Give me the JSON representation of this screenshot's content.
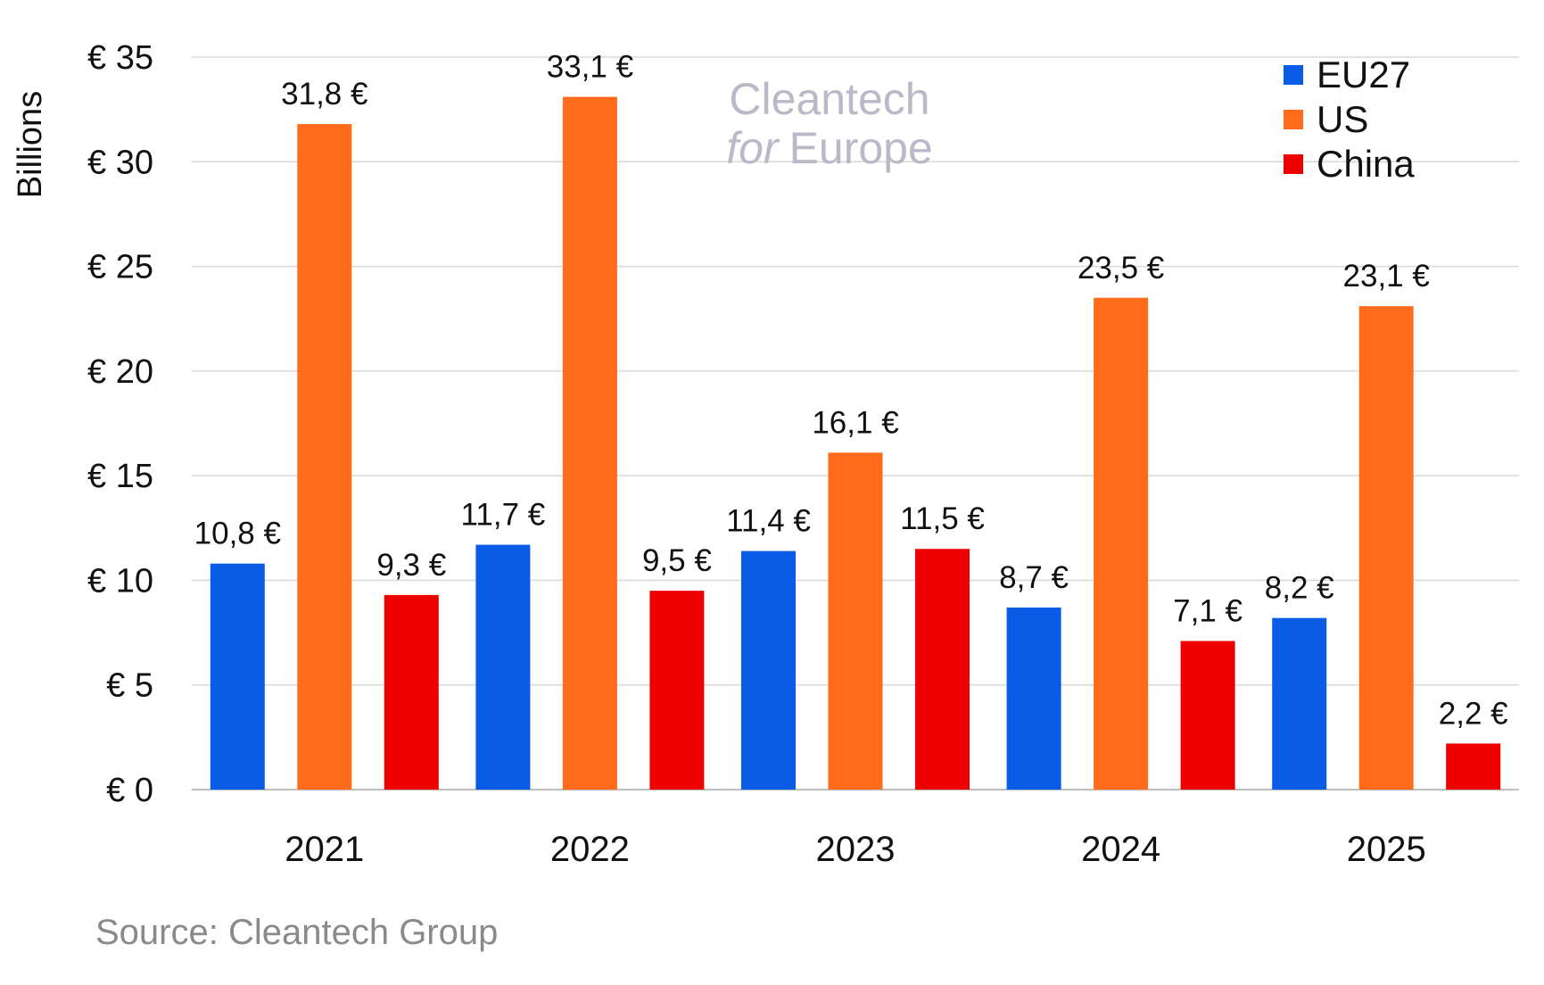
{
  "chart_data": {
    "type": "bar",
    "title": "",
    "categories": [
      "2021",
      "2022",
      "2023",
      "2024",
      "2025"
    ],
    "series": [
      {
        "name": "EU27",
        "color": "#0a5ce6",
        "values": [
          10.8,
          11.7,
          11.4,
          8.7,
          8.2
        ],
        "labels": [
          "10,8 €",
          "11,7 €",
          "11,4 €",
          "8,7 €",
          "8,2 €"
        ]
      },
      {
        "name": "US",
        "color": "#ff6b1a",
        "values": [
          31.8,
          33.1,
          16.1,
          23.5,
          23.1
        ],
        "labels": [
          "31,8 €",
          "33,1 €",
          "16,1 €",
          "23,5 €",
          "23,1 €"
        ]
      },
      {
        "name": "China",
        "color": "#ee0000",
        "values": [
          9.3,
          9.5,
          11.5,
          7.1,
          2.2
        ],
        "labels": [
          "9,3 €",
          "9,5 €",
          "11,5 €",
          "7,1 €",
          "2,2 €"
        ]
      }
    ],
    "ylabel": "Billions",
    "xlabel": "",
    "ylim": [
      0,
      35
    ],
    "yticks": [
      0,
      5,
      10,
      15,
      20,
      25,
      30,
      35
    ],
    "ytick_labels": [
      "€ 0",
      "€ 5",
      "€ 10",
      "€ 15",
      "€ 20",
      "€ 25",
      "€ 30",
      "€ 35"
    ],
    "grid": true,
    "legend_position": "top-right"
  },
  "watermark": {
    "line1": "Cleantech",
    "line2_italic": "for",
    "line2": "Europe"
  },
  "source": "Source: Cleantech Group"
}
